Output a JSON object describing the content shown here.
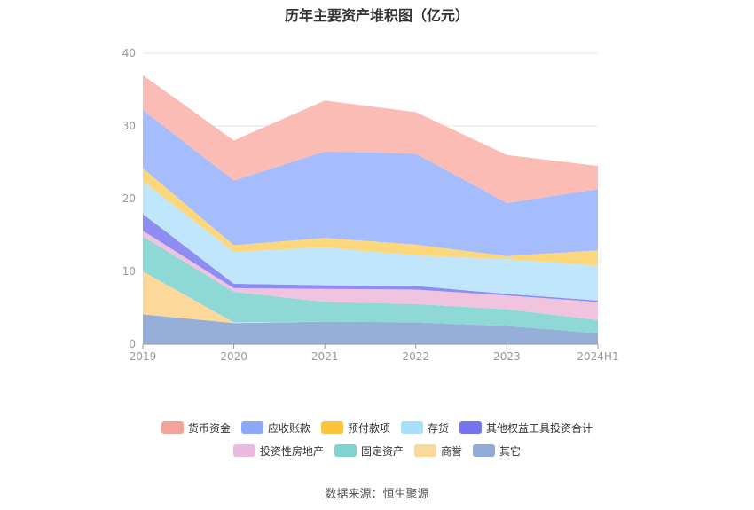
{
  "chart_data": {
    "type": "area",
    "title": "历年主要资产堆积图（亿元）",
    "categories": [
      "2019",
      "2020",
      "2021",
      "2022",
      "2023",
      "2024H1"
    ],
    "y_ticks": [
      "0",
      "10",
      "20",
      "30",
      "40"
    ],
    "ylim": [
      0,
      40
    ],
    "grid": true,
    "legend_position": "bottom",
    "series": [
      {
        "name": "其它",
        "color": "#95afd9",
        "values": [
          4.1,
          2.9,
          3.1,
          3.0,
          2.5,
          1.5
        ]
      },
      {
        "name": "商誉",
        "color": "#fdd89b",
        "values": [
          5.9,
          0.1,
          0.0,
          0.0,
          0.0,
          0.0
        ]
      },
      {
        "name": "固定资产",
        "color": "#8ed8d6",
        "values": [
          4.8,
          4.2,
          2.7,
          2.5,
          2.3,
          1.8
        ]
      },
      {
        "name": "投资性房地产",
        "color": "#f0c3df",
        "values": [
          0.8,
          0.5,
          1.8,
          2.0,
          1.9,
          2.5
        ]
      },
      {
        "name": "其他权益工具投资合计",
        "color": "#8e8ef2",
        "values": [
          2.3,
          0.6,
          0.5,
          0.5,
          0.2,
          0.2
        ]
      },
      {
        "name": "存货",
        "color": "#bfe6fb",
        "values": [
          4.5,
          4.4,
          5.2,
          4.2,
          4.8,
          4.8
        ]
      },
      {
        "name": "预付款项",
        "color": "#fdd77c",
        "values": [
          1.8,
          0.9,
          1.3,
          1.5,
          0.4,
          2.1
        ]
      },
      {
        "name": "应收账款",
        "color": "#a6bdfd",
        "values": [
          8.0,
          8.9,
          11.9,
          12.5,
          7.3,
          8.4
        ]
      },
      {
        "name": "货币资金",
        "color": "#fbbcb5",
        "values": [
          4.8,
          5.5,
          7.0,
          5.7,
          6.6,
          3.2
        ]
      }
    ],
    "legend": [
      {
        "name": "货币资金",
        "color": "#f4a39a"
      },
      {
        "name": "应收账款",
        "color": "#8ca8f8"
      },
      {
        "name": "预付款项",
        "color": "#fcc43d"
      },
      {
        "name": "存货",
        "color": "#a8dff9"
      },
      {
        "name": "其他权益工具投资合计",
        "color": "#7475ee"
      },
      {
        "name": "投资性房地产",
        "color": "#ebbade"
      },
      {
        "name": "固定资产",
        "color": "#7fd3d3"
      },
      {
        "name": "商誉",
        "color": "#fdd89b"
      },
      {
        "name": "其它",
        "color": "#91aad8"
      }
    ]
  },
  "source": "数据来源：恒生聚源"
}
